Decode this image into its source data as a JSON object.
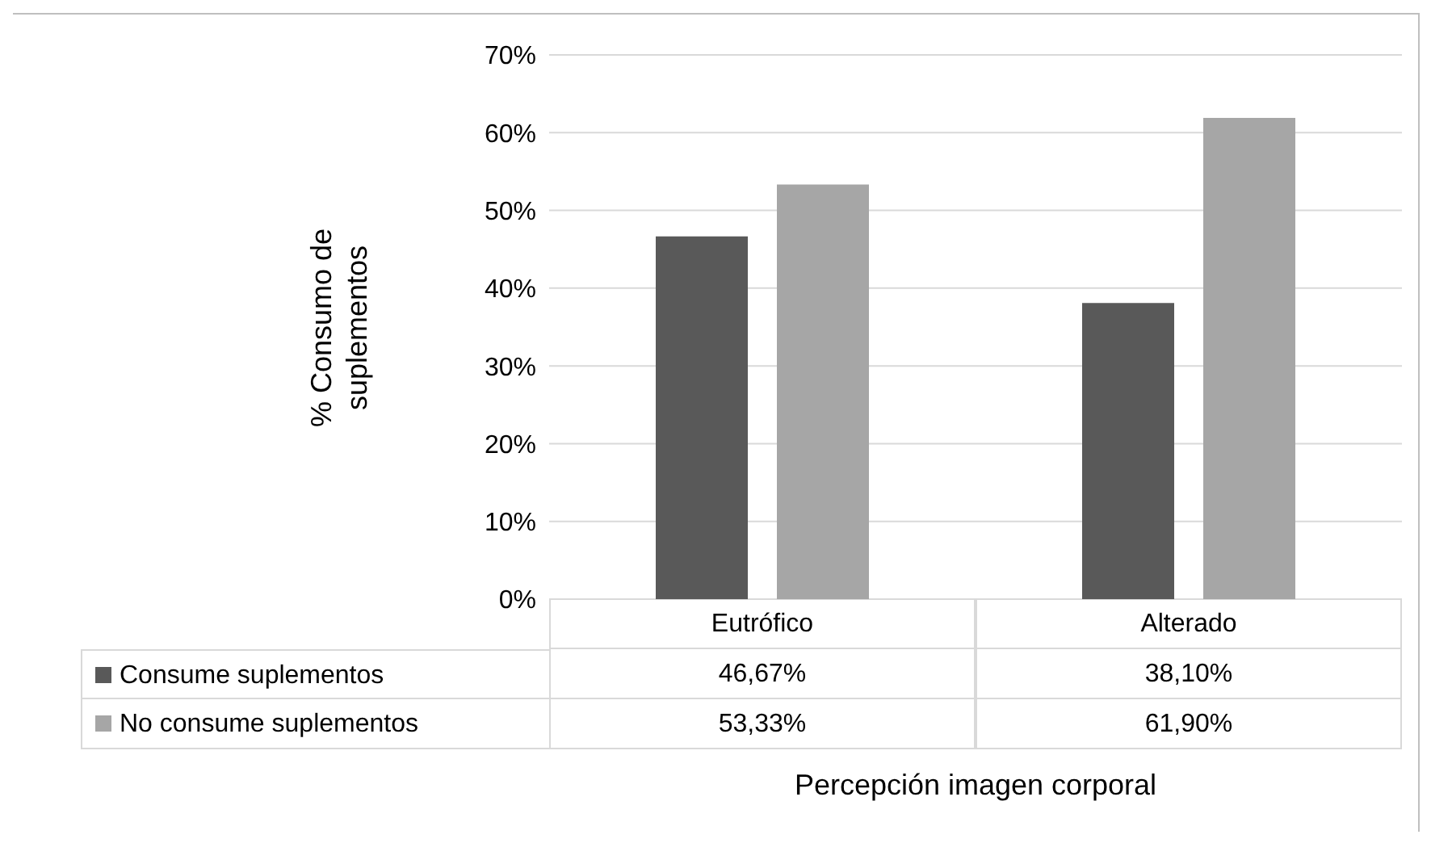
{
  "chart_data": {
    "type": "bar",
    "xlabel": "Percepción imagen corporal",
    "ylabel": "% Consumo de suplementos",
    "categories": [
      "Eutrófico",
      "Alterado"
    ],
    "series": [
      {
        "name": "Consume suplementos",
        "color": "#595959",
        "values": [
          46.67,
          38.1
        ],
        "value_labels": [
          "46,67%",
          "38,10%"
        ]
      },
      {
        "name": "No consume suplementos",
        "color": "#a6a6a6",
        "values": [
          53.33,
          61.9
        ],
        "value_labels": [
          "53,33%",
          "61,90%"
        ]
      }
    ],
    "ylim": [
      0,
      70
    ],
    "yticks": [
      {
        "value": 0,
        "label": "0%"
      },
      {
        "value": 10,
        "label": "10%"
      },
      {
        "value": 20,
        "label": "20%"
      },
      {
        "value": 30,
        "label": "30%"
      },
      {
        "value": 40,
        "label": "40%"
      },
      {
        "value": 50,
        "label": "50%"
      },
      {
        "value": 60,
        "label": "60%"
      },
      {
        "value": 70,
        "label": "70%"
      }
    ],
    "grid": "y",
    "legend": "bottom"
  }
}
